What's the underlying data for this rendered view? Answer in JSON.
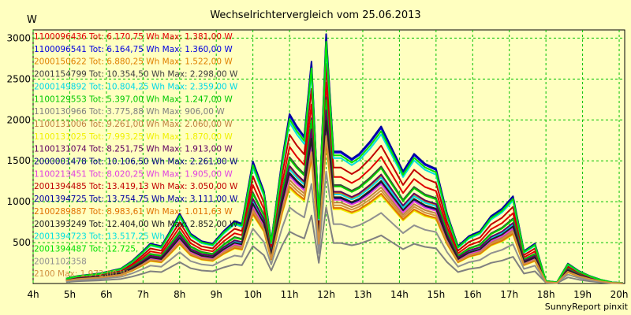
{
  "chart_data": {
    "type": "line",
    "title": "Wechselrichtervergleich vom 25.06.2013",
    "ylabel": "W",
    "footer": "SunnyReport pinxit",
    "ylim": [
      0,
      3100
    ],
    "xlim": [
      4,
      20.15
    ],
    "y_ticks": [
      500,
      1000,
      1500,
      2000,
      2500,
      3000
    ],
    "x_ticks": [
      {
        "v": 4,
        "label": "4h"
      },
      {
        "v": 5,
        "label": "5h"
      },
      {
        "v": 6,
        "label": "6h"
      },
      {
        "v": 7,
        "label": "7h"
      },
      {
        "v": 8,
        "label": "8h"
      },
      {
        "v": 9,
        "label": "9h"
      },
      {
        "v": 10,
        "label": "10h"
      },
      {
        "v": 11,
        "label": "11h"
      },
      {
        "v": 12,
        "label": "12h"
      },
      {
        "v": 13,
        "label": "13h"
      },
      {
        "v": 14,
        "label": "14h"
      },
      {
        "v": 15,
        "label": "15h"
      },
      {
        "v": 16,
        "label": "16h"
      },
      {
        "v": 17,
        "label": "17h"
      },
      {
        "v": 18,
        "label": "18h"
      },
      {
        "v": 19,
        "label": "19h"
      },
      {
        "v": 20,
        "label": "20h"
      }
    ],
    "grid": true,
    "legend_position": "top-left",
    "x": [
      4.9,
      5.2,
      5.5,
      5.8,
      6.1,
      6.4,
      6.7,
      7.0,
      7.2,
      7.5,
      7.7,
      8.0,
      8.3,
      8.6,
      8.9,
      9.2,
      9.5,
      9.7,
      10.0,
      10.3,
      10.5,
      10.8,
      11.0,
      11.2,
      11.4,
      11.6,
      11.8,
      12.0,
      12.2,
      12.4,
      12.7,
      12.9,
      13.2,
      13.5,
      13.8,
      14.1,
      14.4,
      14.7,
      15.0,
      15.3,
      15.6,
      15.9,
      16.2,
      16.5,
      16.8,
      17.1,
      17.4,
      17.7,
      18.0,
      18.3,
      18.6,
      18.9,
      19.2,
      19.5,
      19.8,
      20.1
    ],
    "series": [
      {
        "id": "s01",
        "name": "1100096436",
        "tot": "6.170,75",
        "max": "1.381,00",
        "color": "#e00000"
      },
      {
        "id": "s02",
        "name": "1100096541",
        "tot": "6.164,75",
        "max": "1.360,00",
        "color": "#0000e0"
      },
      {
        "id": "s03",
        "name": "2000150622",
        "tot": "6.880,25",
        "max": "1.522,00",
        "color": "#e08000"
      },
      {
        "id": "s04",
        "name": "2001154799",
        "tot": "10.354,50",
        "max": "2.298,00",
        "color": "#404040"
      },
      {
        "id": "s05",
        "name": "2000149892",
        "tot": "10.804,25",
        "max": "2.359,00",
        "color": "#00d8e8"
      },
      {
        "id": "s06",
        "name": "1100129553",
        "tot": "5.397,00",
        "max": "1.247,00",
        "color": "#00c800"
      },
      {
        "id": "s07",
        "name": "1100130966",
        "tot": "3.775,88",
        "max": "906,00",
        "color": "#808080"
      },
      {
        "id": "s08",
        "name": "1100131006",
        "tot": "9.261,00",
        "max": "2.060,00",
        "color": "#c08040"
      },
      {
        "id": "s09",
        "name": "1100131025",
        "tot": "7.993,25",
        "max": "1.870,00",
        "color": "#f0f000"
      },
      {
        "id": "s10",
        "name": "1100131074",
        "tot": "8.251,75",
        "max": "1.913,00",
        "color": "#600060"
      },
      {
        "id": "s11",
        "name": "2000001478",
        "tot": "10.106,50",
        "max": "2.261,00",
        "color": "#000080"
      },
      {
        "id": "s12",
        "name": "1100213451",
        "tot": "8.020,25",
        "max": "1.905,00",
        "color": "#e040e0"
      },
      {
        "id": "s13",
        "name": "2001394485",
        "tot": "13.419,13",
        "max": "3.050,00",
        "color": "#c00000"
      },
      {
        "id": "s14",
        "name": "2001394725",
        "tot": "13.754,75",
        "max": "3.111,00",
        "color": "#0000a0"
      },
      {
        "id": "s15",
        "name": "2100289887",
        "tot": "8.983,61",
        "max": "1.011,63",
        "color": "#e07000"
      },
      {
        "id": "s16",
        "name": "2001393249",
        "tot": "12.404,00",
        "max": "2.852,00",
        "color": "#202020"
      },
      {
        "id": "s17",
        "name": "2001394723",
        "tot": "13.517,25",
        "max": "",
        "color": "#00e0e0"
      },
      {
        "id": "s18",
        "name": "2001394487",
        "tot": "12.725,",
        "max": "",
        "color": "#00e000"
      },
      {
        "id": "s19",
        "name": "2001102358",
        "tot": "",
        "max": "",
        "color": "#909090"
      },
      {
        "id": "s20",
        "name": "2100",
        "tot": "",
        "max": "1.972,00",
        "color": "#d09040"
      }
    ],
    "base_profile": [
      0.02,
      0.03,
      0.035,
      0.04,
      0.05,
      0.06,
      0.09,
      0.13,
      0.16,
      0.15,
      0.2,
      0.28,
      0.2,
      0.17,
      0.16,
      0.21,
      0.25,
      0.24,
      0.49,
      0.37,
      0.17,
      0.5,
      0.68,
      0.63,
      0.59,
      0.89,
      0.27,
      1.0,
      0.53,
      0.53,
      0.5,
      0.52,
      0.57,
      0.63,
      0.54,
      0.45,
      0.52,
      0.48,
      0.46,
      0.28,
      0.15,
      0.19,
      0.21,
      0.27,
      0.3,
      0.35,
      0.13,
      0.16,
      0.01,
      0.005,
      0.08,
      0.05,
      0.03,
      0.015,
      0.005,
      0.002
    ],
    "series_scale": [
      0.79,
      0.97,
      0.67,
      0.73,
      0.66,
      0.72,
      0.3,
      0.6,
      0.55,
      0.68,
      0.63,
      0.62,
      0.86,
      0.98,
      0.56,
      0.64,
      0.93,
      0.95,
      0.44,
      0.58
    ]
  },
  "legend_format": {
    "tot_prefix": "Tot:",
    "wh_unit": "Wh",
    "max_prefix": "Max:",
    "w_unit": "W"
  }
}
